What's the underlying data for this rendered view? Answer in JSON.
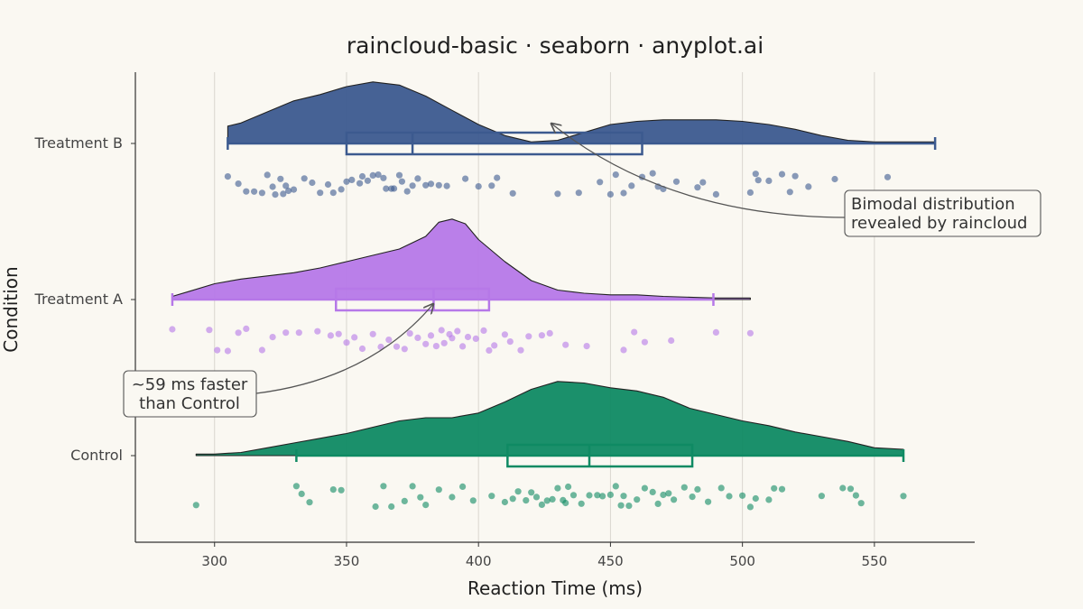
{
  "chart_data": {
    "type": "raincloud",
    "title": "raincloud-basic · seaborn · anyplot.ai",
    "xlabel": "Reaction Time (ms)",
    "ylabel": "Condition",
    "xlim": [
      270,
      588
    ],
    "xticks": [
      300,
      350,
      400,
      450,
      500,
      550
    ],
    "grid": "vertical",
    "categories": [
      "Treatment B",
      "Treatment A",
      "Control"
    ],
    "series": [
      {
        "name": "Treatment B",
        "color": "#3C5A8F",
        "density": [
          [
            305,
            0.11
          ],
          [
            310,
            0.13
          ],
          [
            320,
            0.2
          ],
          [
            330,
            0.27
          ],
          [
            340,
            0.31
          ],
          [
            350,
            0.36
          ],
          [
            360,
            0.39
          ],
          [
            370,
            0.37
          ],
          [
            380,
            0.3
          ],
          [
            390,
            0.21
          ],
          [
            400,
            0.12
          ],
          [
            410,
            0.05
          ],
          [
            420,
            0.01
          ],
          [
            430,
            0.02
          ],
          [
            440,
            0.07
          ],
          [
            450,
            0.12
          ],
          [
            460,
            0.14
          ],
          [
            470,
            0.15
          ],
          [
            480,
            0.15
          ],
          [
            490,
            0.15
          ],
          [
            500,
            0.14
          ],
          [
            510,
            0.12
          ],
          [
            520,
            0.09
          ],
          [
            530,
            0.05
          ],
          [
            540,
            0.02
          ],
          [
            550,
            0.01
          ],
          [
            573,
            0.01
          ]
        ],
        "box": {
          "whisker_low": 305,
          "q1": 350,
          "median": 375,
          "q3": 462,
          "whisker_high": 573
        },
        "points": [
          305,
          309,
          312,
          315,
          318,
          320,
          322,
          323,
          325,
          326,
          327,
          328,
          330,
          334,
          337,
          340,
          343,
          345,
          348,
          350,
          352,
          355,
          356,
          358,
          360,
          362,
          364,
          365,
          367,
          368,
          370,
          371,
          373,
          375,
          377,
          380,
          382,
          385,
          388,
          395,
          400,
          405,
          407,
          413,
          430,
          438,
          446,
          450,
          452,
          455,
          458,
          462,
          466,
          468,
          470,
          475,
          483,
          485,
          490,
          503,
          505,
          506,
          510,
          515,
          518,
          520,
          525,
          535,
          555,
          573
        ]
      },
      {
        "name": "Treatment A",
        "color": "#B678E8",
        "density": [
          [
            284,
            0.02
          ],
          [
            290,
            0.05
          ],
          [
            300,
            0.1
          ],
          [
            310,
            0.13
          ],
          [
            320,
            0.15
          ],
          [
            330,
            0.17
          ],
          [
            340,
            0.2
          ],
          [
            350,
            0.24
          ],
          [
            360,
            0.28
          ],
          [
            370,
            0.32
          ],
          [
            380,
            0.4
          ],
          [
            385,
            0.49
          ],
          [
            390,
            0.51
          ],
          [
            395,
            0.48
          ],
          [
            400,
            0.38
          ],
          [
            410,
            0.24
          ],
          [
            420,
            0.12
          ],
          [
            430,
            0.06
          ],
          [
            440,
            0.04
          ],
          [
            450,
            0.03
          ],
          [
            460,
            0.03
          ],
          [
            470,
            0.02
          ],
          [
            480,
            0.015
          ],
          [
            490,
            0.01
          ],
          [
            503,
            0.01
          ]
        ],
        "box": {
          "whisker_low": 284,
          "q1": 346,
          "median": 383,
          "q3": 404,
          "whisker_high": 489
        },
        "points": [
          284,
          298,
          301,
          305,
          309,
          312,
          318,
          322,
          327,
          332,
          339,
          344,
          347,
          350,
          353,
          356,
          360,
          363,
          366,
          369,
          372,
          374,
          377,
          380,
          382,
          384,
          386,
          387,
          389,
          390,
          392,
          394,
          396,
          399,
          402,
          404,
          406,
          410,
          412,
          416,
          419,
          424,
          427,
          433,
          441,
          455,
          459,
          463,
          473,
          490,
          503
        ]
      },
      {
        "name": "Control",
        "color": "#0F8A63",
        "density": [
          [
            293,
            0.01
          ],
          [
            300,
            0.01
          ],
          [
            310,
            0.02
          ],
          [
            320,
            0.05
          ],
          [
            330,
            0.08
          ],
          [
            340,
            0.11
          ],
          [
            350,
            0.14
          ],
          [
            360,
            0.18
          ],
          [
            370,
            0.22
          ],
          [
            380,
            0.24
          ],
          [
            390,
            0.24
          ],
          [
            400,
            0.27
          ],
          [
            410,
            0.34
          ],
          [
            420,
            0.42
          ],
          [
            430,
            0.47
          ],
          [
            440,
            0.46
          ],
          [
            450,
            0.43
          ],
          [
            460,
            0.41
          ],
          [
            470,
            0.37
          ],
          [
            480,
            0.3
          ],
          [
            490,
            0.26
          ],
          [
            500,
            0.22
          ],
          [
            510,
            0.19
          ],
          [
            520,
            0.15
          ],
          [
            530,
            0.12
          ],
          [
            540,
            0.09
          ],
          [
            550,
            0.05
          ],
          [
            561,
            0.04
          ]
        ],
        "box": {
          "whisker_low": 331,
          "q1": 411,
          "median": 442,
          "q3": 481,
          "whisker_high": 561
        },
        "points": [
          293,
          331,
          333,
          336,
          345,
          348,
          361,
          364,
          367,
          372,
          375,
          378,
          380,
          385,
          390,
          394,
          398,
          405,
          410,
          413,
          415,
          418,
          420,
          422,
          424,
          426,
          428,
          430,
          432,
          433,
          434,
          436,
          439,
          442,
          445,
          447,
          450,
          452,
          454,
          455,
          457,
          460,
          463,
          466,
          468,
          470,
          472,
          474,
          478,
          481,
          483,
          487,
          492,
          495,
          500,
          503,
          505,
          510,
          512,
          515,
          530,
          538,
          541,
          543,
          545,
          561
        ]
      }
    ],
    "annotations": [
      {
        "lines": [
          "Bimodal distribution",
          "revealed by raincloud"
        ],
        "target_x": 425,
        "target_row": "Treatment B"
      },
      {
        "lines": [
          "~59 ms faster",
          "than Control"
        ],
        "target_x": 384,
        "target_row": "Treatment A"
      }
    ]
  }
}
